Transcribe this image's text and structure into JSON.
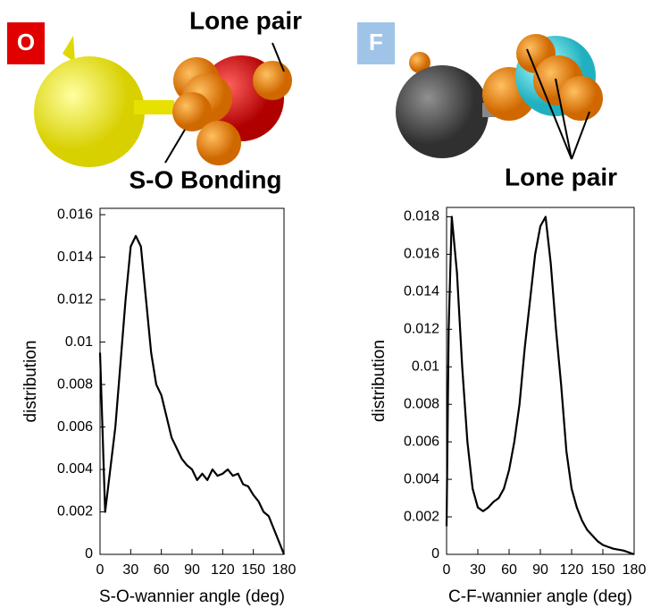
{
  "chart_data": [
    {
      "type": "line",
      "label": "O",
      "annotations": [
        "Lone pair",
        "S-O Bonding"
      ],
      "xlabel": "S-O-wannier angle (deg)",
      "ylabel": "distribution",
      "xlim": [
        0,
        180
      ],
      "xticks": [
        0,
        30,
        60,
        90,
        120,
        150,
        180
      ],
      "ylim": [
        0,
        0.0163
      ],
      "yticks": [
        0,
        0.002,
        0.004,
        0.006,
        0.008,
        0.01,
        0.012,
        0.014,
        0.016
      ],
      "x": [
        0,
        5,
        10,
        15,
        20,
        25,
        30,
        35,
        40,
        45,
        50,
        55,
        60,
        65,
        70,
        75,
        80,
        85,
        90,
        95,
        100,
        105,
        110,
        115,
        120,
        125,
        130,
        135,
        140,
        145,
        150,
        155,
        160,
        165,
        170,
        175,
        180
      ],
      "series": [
        {
          "color": "#000000",
          "values": [
            0.0095,
            0.002,
            0.004,
            0.006,
            0.009,
            0.012,
            0.0145,
            0.015,
            0.0145,
            0.012,
            0.0095,
            0.008,
            0.0075,
            0.0065,
            0.0055,
            0.005,
            0.0045,
            0.0042,
            0.004,
            0.0035,
            0.0038,
            0.0035,
            0.004,
            0.0037,
            0.0038,
            0.004,
            0.0037,
            0.0038,
            0.0033,
            0.0032,
            0.0028,
            0.0025,
            0.002,
            0.0018,
            0.0012,
            0.0006,
            0
          ]
        }
      ]
    },
    {
      "type": "line",
      "label": "F",
      "annotations": [
        "Lone pair"
      ],
      "xlabel": "C-F-wannier angle (deg)",
      "ylabel": "distribution",
      "xlim": [
        0,
        180
      ],
      "xticks": [
        0,
        30,
        60,
        90,
        120,
        150,
        180
      ],
      "ylim": [
        0,
        0.0185
      ],
      "yticks": [
        0,
        0.002,
        0.004,
        0.006,
        0.008,
        0.01,
        0.012,
        0.014,
        0.016,
        0.018
      ],
      "x": [
        0,
        2,
        5,
        10,
        15,
        20,
        25,
        30,
        35,
        40,
        45,
        50,
        55,
        60,
        65,
        70,
        75,
        80,
        85,
        90,
        95,
        100,
        105,
        110,
        115,
        120,
        125,
        130,
        135,
        140,
        145,
        150,
        155,
        160,
        170,
        180
      ],
      "series": [
        {
          "color": "#000000",
          "values": [
            0.0015,
            0.012,
            0.018,
            0.015,
            0.01,
            0.006,
            0.0035,
            0.0025,
            0.0023,
            0.0025,
            0.0028,
            0.003,
            0.0035,
            0.0045,
            0.006,
            0.008,
            0.011,
            0.0135,
            0.016,
            0.0175,
            0.018,
            0.0155,
            0.012,
            0.009,
            0.0055,
            0.0035,
            0.0025,
            0.0018,
            0.0013,
            0.001,
            0.0007,
            0.0005,
            0.0004,
            0.0003,
            0.0002,
            0
          ]
        }
      ]
    }
  ]
}
